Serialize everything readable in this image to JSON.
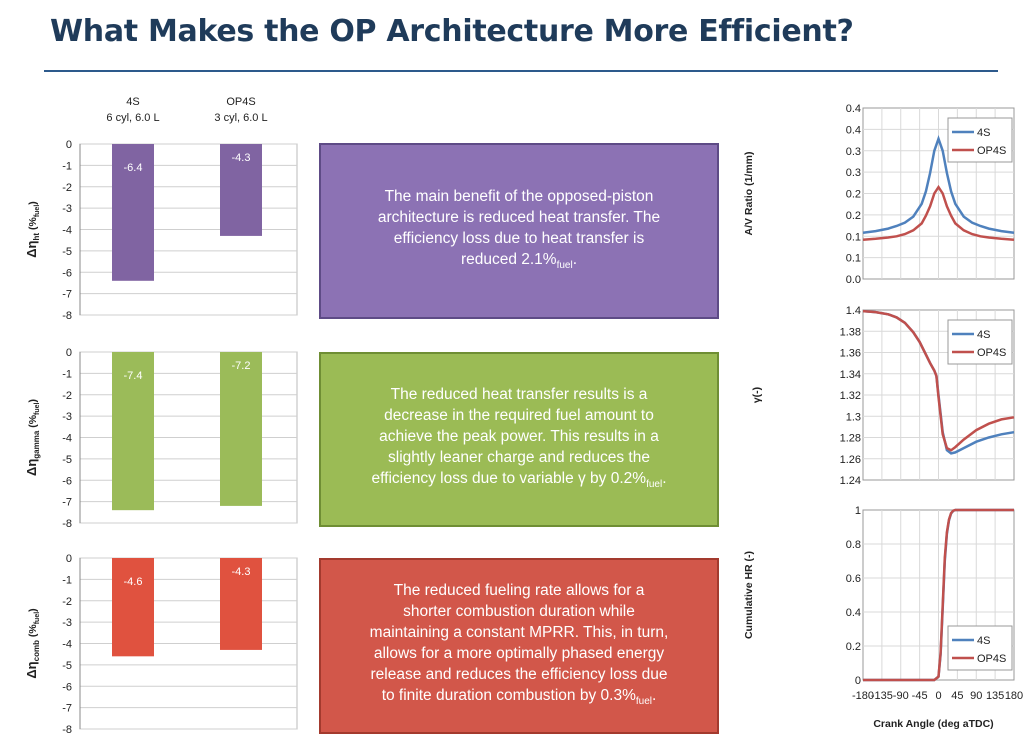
{
  "title": "What Makes the OP Architecture More Efficient?",
  "columns": [
    {
      "name": "4S",
      "spec": "6 cyl, 6.0 L"
    },
    {
      "name": "OP4S",
      "spec": "3 cyl, 6.0 L"
    }
  ],
  "boxes": [
    {
      "lines": [
        "The main benefit of the opposed-piston",
        "architecture is reduced heat transfer.  The",
        "efficiency loss due to heat transfer is",
        "reduced 2.1%"
      ],
      "sub": "fuel",
      "end": ".",
      "color": "#8c72b4"
    },
    {
      "lines": [
        "The reduced heat transfer results is a",
        "decrease in the required fuel amount to",
        "achieve the peak power.  This results in a",
        "slightly leaner charge and reduces the",
        "efficiency loss due to variable γ by 0.2%"
      ],
      "sub": "fuel",
      "end": ".",
      "color": "#9bbb55"
    },
    {
      "lines": [
        "The reduced fueling rate allows for a",
        "shorter combustion duration while",
        "maintaining a constant MPRR.  This, in turn,",
        "allows for a more optimally phased energy",
        "release and reduces the efficiency loss due",
        "to finite duration combustion by 0.3%"
      ],
      "sub": "fuel",
      "end": ".",
      "color": "#d2574a"
    }
  ],
  "chart_data": [
    {
      "type": "bar",
      "categories": [
        "4S",
        "OP4S"
      ],
      "values": [
        -6.4,
        -4.3
      ],
      "ylabel": "Δη",
      "ylabel_sub": "ht",
      "ylabel_tail": " (%",
      "ylabel_sub2": "fuel",
      "ylabel_end": ")",
      "ylim": [
        -8,
        0
      ],
      "yticks": [
        0,
        -1,
        -2,
        -3,
        -4,
        -5,
        -6,
        -7,
        -8
      ],
      "color": "#8064a2",
      "grid": true
    },
    {
      "type": "bar",
      "categories": [
        "4S",
        "OP4S"
      ],
      "values": [
        -7.4,
        -7.2
      ],
      "ylabel": "Δη",
      "ylabel_sub": "gamma",
      "ylabel_tail": " (%",
      "ylabel_sub2": "fuel",
      "ylabel_end": ")",
      "ylim": [
        -8,
        0
      ],
      "yticks": [
        0,
        -1,
        -2,
        -3,
        -4,
        -5,
        -6,
        -7,
        -8
      ],
      "color": "#9bbb59",
      "grid": true
    },
    {
      "type": "bar",
      "categories": [
        "4S",
        "OP4S"
      ],
      "values": [
        -4.6,
        -4.3
      ],
      "ylabel": "Δη",
      "ylabel_sub": "comb",
      "ylabel_tail": " (%",
      "ylabel_sub2": "fuel",
      "ylabel_end": ")",
      "ylim": [
        -8,
        0
      ],
      "yticks": [
        0,
        -1,
        -2,
        -3,
        -4,
        -5,
        -6,
        -7,
        -8
      ],
      "color": "#e0523f",
      "grid": true
    },
    {
      "type": "line",
      "ylabel": "A/V Ratio (1/mm)",
      "xlim": [
        -180,
        180
      ],
      "ylim": [
        0.0,
        0.4
      ],
      "yticks": [
        "0.0",
        "0.1",
        "0.1",
        "0.2",
        "0.2",
        "0.3",
        "0.3",
        "0.4",
        "0.4"
      ],
      "legend": "top-right",
      "grid": true,
      "series": [
        {
          "name": "4S",
          "color": "#4f81bd",
          "x": [
            -180,
            -150,
            -120,
            -100,
            -80,
            -60,
            -40,
            -30,
            -20,
            -10,
            0,
            10,
            20,
            30,
            40,
            60,
            80,
            100,
            120,
            150,
            180
          ],
          "y": [
            0.108,
            0.112,
            0.118,
            0.124,
            0.132,
            0.146,
            0.176,
            0.205,
            0.248,
            0.3,
            0.328,
            0.3,
            0.248,
            0.205,
            0.176,
            0.146,
            0.132,
            0.124,
            0.118,
            0.112,
            0.108
          ]
        },
        {
          "name": "OP4S",
          "color": "#c0504d",
          "x": [
            -180,
            -150,
            -120,
            -100,
            -80,
            -60,
            -40,
            -30,
            -20,
            -10,
            0,
            10,
            20,
            30,
            40,
            60,
            80,
            100,
            120,
            150,
            180
          ],
          "y": [
            0.092,
            0.094,
            0.097,
            0.1,
            0.105,
            0.114,
            0.13,
            0.148,
            0.17,
            0.2,
            0.215,
            0.2,
            0.17,
            0.148,
            0.13,
            0.114,
            0.105,
            0.1,
            0.097,
            0.094,
            0.092
          ]
        }
      ]
    },
    {
      "type": "line",
      "ylabel": "γ(-)",
      "xlim": [
        -180,
        180
      ],
      "ylim": [
        1.24,
        1.4
      ],
      "yticks": [
        "1.24",
        "1.26",
        "1.28",
        "1.3",
        "1.32",
        "1.34",
        "1.36",
        "1.38",
        "1.4"
      ],
      "legend": "top-right",
      "grid": true,
      "series": [
        {
          "name": "4S",
          "color": "#4f81bd",
          "x": [
            -180,
            -150,
            -120,
            -100,
            -80,
            -60,
            -45,
            -30,
            -20,
            -10,
            -5,
            0,
            10,
            20,
            30,
            40,
            60,
            90,
            120,
            150,
            180
          ],
          "y": [
            1.399,
            1.398,
            1.396,
            1.393,
            1.388,
            1.379,
            1.37,
            1.358,
            1.35,
            1.343,
            1.338,
            1.32,
            1.285,
            1.268,
            1.265,
            1.266,
            1.27,
            1.276,
            1.28,
            1.283,
            1.285
          ]
        },
        {
          "name": "OP4S",
          "color": "#c0504d",
          "x": [
            -180,
            -150,
            -120,
            -100,
            -80,
            -60,
            -45,
            -30,
            -20,
            -10,
            -5,
            0,
            10,
            20,
            30,
            40,
            60,
            90,
            120,
            150,
            180
          ],
          "y": [
            1.399,
            1.398,
            1.396,
            1.393,
            1.388,
            1.379,
            1.37,
            1.358,
            1.35,
            1.343,
            1.338,
            1.318,
            1.283,
            1.27,
            1.268,
            1.271,
            1.278,
            1.287,
            1.293,
            1.297,
            1.299
          ]
        }
      ]
    },
    {
      "type": "line",
      "ylabel": "Cumulative HR (-)",
      "xlabel": "Crank Angle (deg aTDC)",
      "xlim": [
        -180,
        180
      ],
      "ylim": [
        0,
        1
      ],
      "xticks": [
        "-180",
        "-135",
        "-90",
        "-45",
        "0",
        "45",
        "90",
        "135",
        "180"
      ],
      "yticks": [
        "0",
        "0.2",
        "0.4",
        "0.6",
        "0.8",
        "1"
      ],
      "legend": "bottom-right",
      "grid": true,
      "series": [
        {
          "name": "4S",
          "color": "#4f81bd",
          "x": [
            -180,
            -10,
            0,
            5,
            10,
            15,
            20,
            25,
            30,
            35,
            40,
            180
          ],
          "y": [
            0,
            0,
            0.02,
            0.15,
            0.42,
            0.7,
            0.86,
            0.94,
            0.98,
            0.995,
            1,
            1
          ]
        },
        {
          "name": "OP4S",
          "color": "#c0504d",
          "x": [
            -180,
            -10,
            0,
            5,
            10,
            15,
            20,
            25,
            30,
            35,
            40,
            180
          ],
          "y": [
            0,
            0,
            0.02,
            0.16,
            0.44,
            0.72,
            0.87,
            0.945,
            0.982,
            0.996,
            1,
            1
          ]
        }
      ]
    }
  ]
}
